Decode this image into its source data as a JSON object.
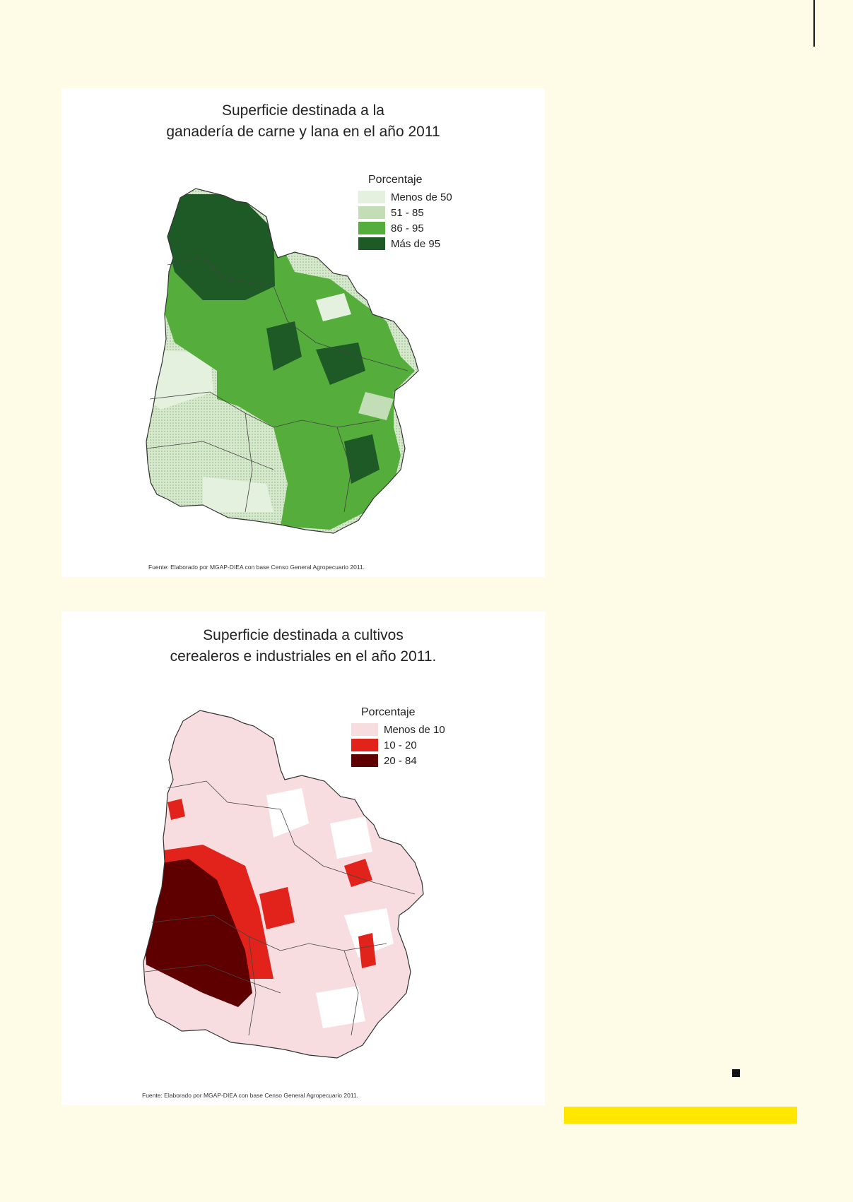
{
  "map1": {
    "title_line1": "Superficie destinada a la",
    "title_line2": "ganadería de carne y lana en el año 2011",
    "legend_title": "Porcentaje",
    "legend": [
      {
        "label": "Menos de 50",
        "color": "#e3f1de"
      },
      {
        "label": "51 - 85",
        "color": "#c3ddb7"
      },
      {
        "label": "86 - 95",
        "color": "#55ad3c"
      },
      {
        "label": "Más de 95",
        "color": "#1e5a26"
      }
    ],
    "source": "Fuente: Elaborado por MGAP-DIEA con base Censo General Agropecuario 2011."
  },
  "map2": {
    "title_line1": "Superficie destinada a cultivos",
    "title_line2": "cerealeros e industriales en el año 2011.",
    "legend_title": "Porcentaje",
    "legend": [
      {
        "label": "Menos de 10",
        "color": "#f8dde0"
      },
      {
        "label": "10 - 20",
        "color": "#e2231c"
      },
      {
        "label": "20 - 84",
        "color": "#5e0000"
      }
    ],
    "source": "Fuente: Elaborado por MGAP-DIEA con base Censo General Agropecuario 2011."
  }
}
